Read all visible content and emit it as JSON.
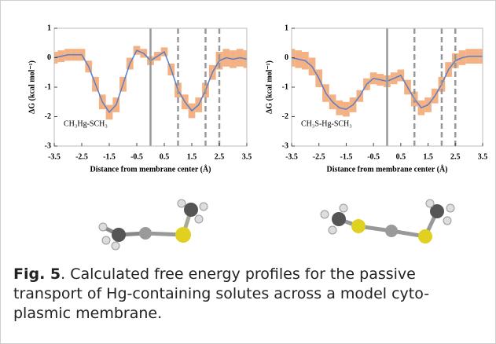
{
  "chart_data": [
    {
      "type": "line",
      "y_label": "ΔG (kcal mol⁻¹)",
      "x_label": "Distance from membrane center (Å)",
      "annotation": "CH₃Hg-SCH₃",
      "x": [
        -3.5,
        -3.25,
        -3,
        -2.75,
        -2.5,
        -2.25,
        -2,
        -1.75,
        -1.5,
        -1.25,
        -1,
        -0.75,
        -0.5,
        -0.25,
        0,
        0.25,
        0.5,
        0.75,
        1,
        1.25,
        1.5,
        1.75,
        2,
        2.25,
        2.5,
        2.75,
        3,
        3.25,
        3.5
      ],
      "values": [
        0,
        0.05,
        0.1,
        0.1,
        0.1,
        -0.3,
        -0.9,
        -1.5,
        -1.85,
        -1.6,
        -0.9,
        -0.2,
        0.25,
        0.15,
        -0.1,
        0.05,
        0.2,
        -0.4,
        -1.1,
        -1.5,
        -1.8,
        -1.6,
        -1.1,
        -0.5,
        -0.1,
        0,
        -0.05,
        0,
        -0.05
      ],
      "errors": [
        0.2,
        0.2,
        0.2,
        0.2,
        0.2,
        0.2,
        0.25,
        0.25,
        0.25,
        0.25,
        0.25,
        0.2,
        0.15,
        0.15,
        0.15,
        0.15,
        0.15,
        0.2,
        0.25,
        0.25,
        0.25,
        0.25,
        0.25,
        0.25,
        0.3,
        0.3,
        0.3,
        0.3,
        0.3
      ],
      "color": "#5b7fc7",
      "band_color": "#f4b183",
      "xlim": [
        -3.5,
        3.5
      ],
      "ylim": [
        -3,
        1
      ],
      "xticks": [
        -3.5,
        -2.5,
        -1.5,
        -0.5,
        0.5,
        1.5,
        2.5,
        3.5
      ],
      "yticks": [
        -3,
        -2,
        -1,
        0,
        1
      ],
      "solid_vlines": [
        0
      ],
      "dashed_vlines": [
        1,
        2,
        2.5
      ]
    },
    {
      "type": "line",
      "y_label": "ΔG (kcal mol⁻¹)",
      "x_label": "Distance from membrane center (Å)",
      "annotation": "CH₃S-Hg-SCH₃",
      "x": [
        -3.5,
        -3.25,
        -3,
        -2.75,
        -2.5,
        -2.25,
        -2,
        -1.75,
        -1.5,
        -1.25,
        -1,
        -0.75,
        -0.5,
        -0.25,
        0,
        0.25,
        0.5,
        0.75,
        1,
        1.25,
        1.5,
        1.75,
        2,
        2.25,
        2.5,
        2.75,
        3,
        3.25,
        3.5
      ],
      "values": [
        0,
        -0.05,
        -0.1,
        -0.3,
        -0.7,
        -1.2,
        -1.5,
        -1.7,
        -1.75,
        -1.6,
        -1.3,
        -0.9,
        -0.7,
        -0.75,
        -0.8,
        -0.7,
        -0.6,
        -1,
        -1.4,
        -1.7,
        -1.6,
        -1.3,
        -0.9,
        -0.4,
        -0.1,
        0,
        0.05,
        0.05,
        0.05
      ],
      "errors": [
        0.3,
        0.3,
        0.3,
        0.3,
        0.3,
        0.3,
        0.25,
        0.25,
        0.25,
        0.25,
        0.2,
        0.2,
        0.2,
        0.2,
        0.2,
        0.2,
        0.2,
        0.25,
        0.25,
        0.25,
        0.25,
        0.25,
        0.25,
        0.25,
        0.25,
        0.25,
        0.25,
        0.25,
        0.25
      ],
      "color": "#5b7fc7",
      "band_color": "#f4b183",
      "xlim": [
        -3.5,
        3.5
      ],
      "ylim": [
        -3,
        1
      ],
      "xticks": [
        -3.5,
        -2.5,
        -1.5,
        -0.5,
        0.5,
        1.5,
        2.5,
        3.5
      ],
      "yticks": [
        -3,
        -2,
        -1,
        0,
        1
      ],
      "solid_vlines": [
        0
      ],
      "dashed_vlines": [
        1,
        2,
        2.5
      ]
    }
  ],
  "caption": {
    "label": "Fig. 5",
    "text": ". Calculated free energy profiles for the passive transport of Hg-containing solutes across a model cyto-plasmic membrane."
  }
}
